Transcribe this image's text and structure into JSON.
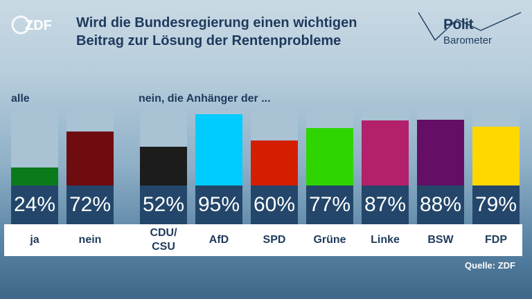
{
  "header": {
    "logo_left": "ZDF",
    "title_line1": "Wird die Bundesregierung einen wichtigen",
    "title_line2": "Beitrag zur Lösung der Rentenprobleme",
    "logo_right_top": "Polit",
    "logo_right_bottom": "Barometer"
  },
  "groups": {
    "all_label": "alle",
    "supporters_label": "nein, die Anhänger der ..."
  },
  "source": "Quelle: ZDF",
  "chart_data": {
    "type": "bar",
    "title": "Wird die Bundesregierung einen wichtigen Beitrag zur Lösung der Rentenprobleme",
    "ylim": [
      0,
      100
    ],
    "unit": "%",
    "categories": [
      "ja",
      "nein",
      "CDU/\nCSU",
      "AfD",
      "SPD",
      "Grüne",
      "Linke",
      "BSW",
      "FDP"
    ],
    "values": [
      24,
      72,
      52,
      95,
      60,
      77,
      87,
      88,
      79
    ],
    "value_labels": [
      "24%",
      "72%",
      "52%",
      "95%",
      "60%",
      "77%",
      "87%",
      "88%",
      "79%"
    ],
    "colors": [
      "#0b7a1b",
      "#6e0c10",
      "#1c1c1c",
      "#00ccff",
      "#d31f00",
      "#2ed500",
      "#b3206b",
      "#650e65",
      "#ffd800"
    ]
  }
}
